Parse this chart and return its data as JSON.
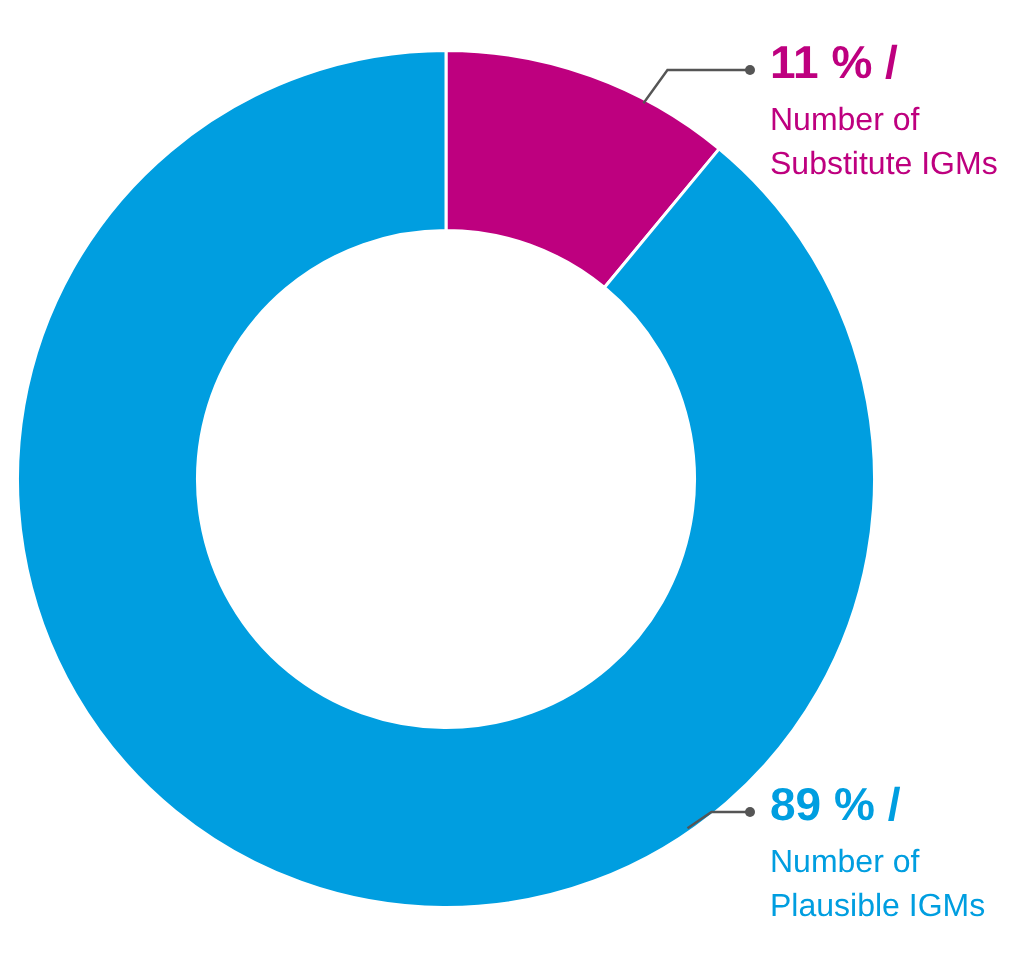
{
  "chart_data": {
    "type": "donut",
    "categories": [
      "Number of Substitute IGMs",
      "Number of Plausible IGMs"
    ],
    "values": [
      11,
      89
    ],
    "colors": [
      "#be007f",
      "#009ee0"
    ],
    "value_labels": [
      "11 % /",
      "89 % /"
    ],
    "legend": false
  }
}
